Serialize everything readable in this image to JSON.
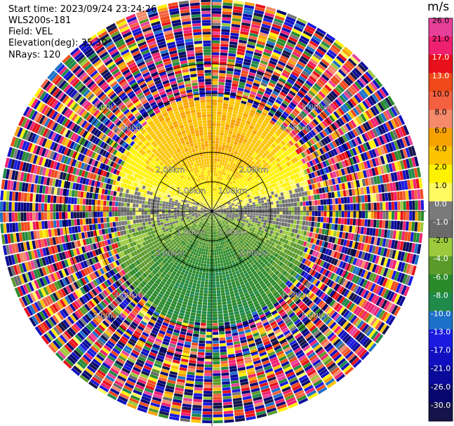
{
  "header": {
    "start_time": "Start time: 2023/09/24 23:24:26",
    "instrument": "WLS200s-181",
    "field": "Field: VEL",
    "elevation": "Elevation(deg): 35.30",
    "nrays": "NRays: 120"
  },
  "colorbar": {
    "unit": "m/s",
    "bins": [
      {
        "label": "26.0",
        "color": "#e8409a"
      },
      {
        "label": "21.0",
        "color": "#f02070"
      },
      {
        "label": "17.0",
        "color": "#e8101a"
      },
      {
        "label": "13.0",
        "color": "#f04a1a"
      },
      {
        "label": "10.0",
        "color": "#f46040"
      },
      {
        "label": "8.0",
        "color": "#f48a6a"
      },
      {
        "label": "6.0",
        "color": "#f8a200"
      },
      {
        "label": "4.0",
        "color": "#fcc400"
      },
      {
        "label": "2.0",
        "color": "#fff200"
      },
      {
        "label": "1.0",
        "color": "#fffa60"
      },
      {
        "label": "0.0",
        "color": "#7a7a7a"
      },
      {
        "label": "-1.0",
        "color": "#6a6a6a"
      },
      {
        "label": "-2.0",
        "color": "#9cca3c"
      },
      {
        "label": "-4.0",
        "color": "#5a9a2a"
      },
      {
        "label": "-6.0",
        "color": "#2a8a2a"
      },
      {
        "label": "-8.0",
        "color": "#1f8a4a"
      },
      {
        "label": "-10.0",
        "color": "#1c70c8"
      },
      {
        "label": "-13.0",
        "color": "#1a1ae0"
      },
      {
        "label": "-17.0",
        "color": "#1010c0"
      },
      {
        "label": "-21.0",
        "color": "#0a0a9a"
      },
      {
        "label": "-26.0",
        "color": "#06066e"
      },
      {
        "label": "-30.0",
        "color": "#14144a"
      }
    ]
  },
  "chart_data": {
    "type": "heatmap",
    "projection": "polar PPI",
    "field": "VEL",
    "units": "m/s",
    "range_rings_km": [
      1.0,
      2.0,
      4.0,
      5.0
    ],
    "ring_labels": [
      "1.00km",
      "2.00km",
      "4.00km",
      "5.00km"
    ],
    "n_rays": 120,
    "max_range_km": 7.2,
    "color_scale": "m/s",
    "pattern": "Coherent signal within ~3.5 km: positive velocities (yellow/orange, ~1 to 8 m/s) in the northern half, negative velocities (green, ~-2 to -6 m/s) in the southern half, near-zero grey along the east-west axis; beyond ~3.5 km the field is random noise across all colors."
  }
}
